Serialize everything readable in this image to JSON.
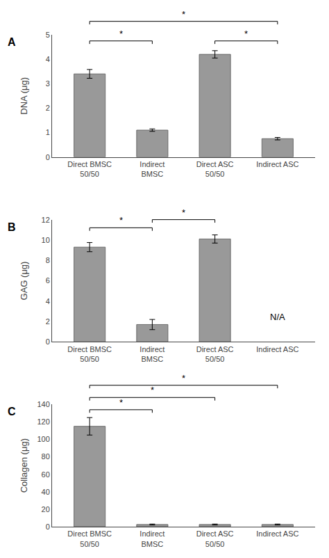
{
  "chart_data": [
    {
      "type": "bar",
      "title": "A",
      "ylabel": "DNA (μg)",
      "categories": [
        "Direct BMSC\n50/50",
        "Indirect\nBMSC",
        "Direct ASC\n50/50",
        "Indirect ASC"
      ],
      "values": [
        3.4,
        1.1,
        4.2,
        0.75
      ],
      "errors": [
        0.18,
        0.05,
        0.15,
        0.05
      ],
      "color": "#999999",
      "ylim": [
        0,
        5
      ],
      "yticks": [
        0,
        1,
        2,
        3,
        4,
        5
      ],
      "grid": false,
      "significance": [
        {
          "from": "Direct BMSC\n50/50",
          "to": "Indirect\nBMSC",
          "y": 4.75,
          "label": "*"
        },
        {
          "from": "Direct BMSC\n50/50",
          "to": "Indirect ASC",
          "y": 5.55,
          "label": "*"
        },
        {
          "from": "Direct ASC\n50/50",
          "to": "Indirect ASC",
          "y": 4.75,
          "label": "*"
        }
      ]
    },
    {
      "type": "bar",
      "title": "B",
      "ylabel": "GAG (μg)",
      "categories": [
        "Direct BMSC\n50/50",
        "Indirect\nBMSC",
        "Direct ASC\n50/50",
        "Indirect ASC"
      ],
      "values": [
        9.3,
        1.7,
        10.1,
        null
      ],
      "errors": [
        0.45,
        0.5,
        0.4,
        null
      ],
      "color": "#999999",
      "ylim": [
        0,
        12
      ],
      "yticks": [
        0,
        2,
        4,
        6,
        8,
        10,
        12
      ],
      "grid": false,
      "annotations": [
        {
          "text": "N/A",
          "x": "Indirect ASC"
        }
      ],
      "significance": [
        {
          "from": "Direct BMSC\n50/50",
          "to": "Indirect\nBMSC",
          "y": 11.2,
          "label": "*"
        },
        {
          "from": "Indirect\nBMSC",
          "to": "Direct ASC\n50/50",
          "y": 12.0,
          "label": "*"
        }
      ]
    },
    {
      "type": "bar",
      "title": "C",
      "ylabel": "Collagen (μg)",
      "categories": [
        "Direct BMSC\n50/50",
        "Indirect\nBMSC",
        "Direct ASC\n50/50",
        "Indirect ASC"
      ],
      "values": [
        115,
        2.5,
        2.5,
        2.5
      ],
      "errors": [
        10,
        0.5,
        0.5,
        0.5
      ],
      "color": "#999999",
      "ylim": [
        0,
        140
      ],
      "yticks": [
        0,
        20,
        40,
        60,
        80,
        100,
        120,
        140
      ],
      "grid": false,
      "significance": [
        {
          "from": "Direct BMSC\n50/50",
          "to": "Indirect\nBMSC",
          "y": 134,
          "label": "*"
        },
        {
          "from": "Direct BMSC\n50/50",
          "to": "Direct ASC\n50/50",
          "y": 148,
          "label": "*"
        },
        {
          "from": "Direct BMSC\n50/50",
          "to": "Indirect ASC",
          "y": 162,
          "label": "*"
        }
      ]
    }
  ]
}
